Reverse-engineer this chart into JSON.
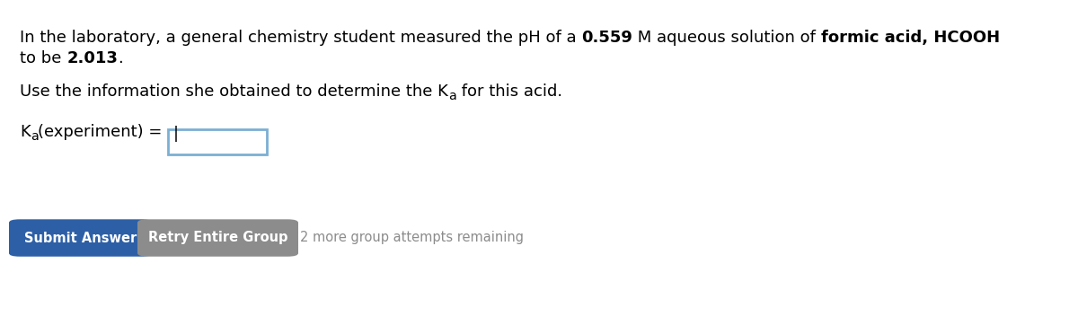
{
  "bg_color": "#ffffff",
  "text_color": "#000000",
  "white": "#ffffff",
  "input_border_color": "#7bafd4",
  "btn1_color": "#2d5fa6",
  "btn2_color": "#8c8c8c",
  "remaining_color": "#8c8c8c",
  "btn1_text": "Submit Answer",
  "btn2_text": "Retry Entire Group",
  "remaining_text": "2 more group attempts remaining",
  "font_size_main": 13.0,
  "font_size_btn": 10.5,
  "font_size_remaining": 10.5,
  "fig_width": 12.0,
  "fig_height": 3.72,
  "dpi": 100
}
